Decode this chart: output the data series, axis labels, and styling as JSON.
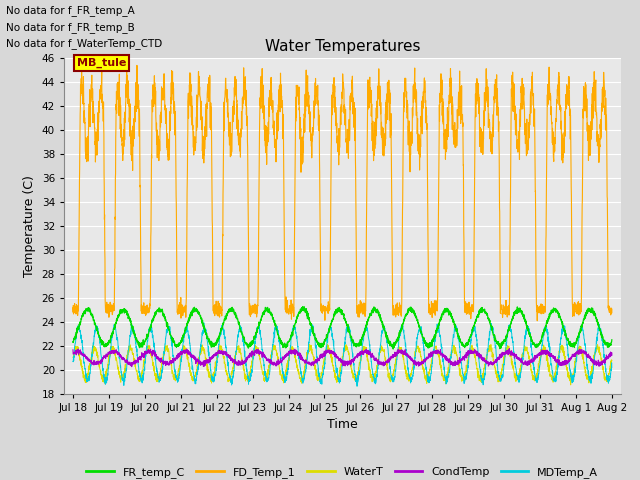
{
  "title": "Water Temperatures",
  "ylabel": "Temperature (C)",
  "xlabel": "Time",
  "ylim": [
    18,
    46
  ],
  "yticks": [
    18,
    20,
    22,
    24,
    26,
    28,
    30,
    32,
    34,
    36,
    38,
    40,
    42,
    44,
    46
  ],
  "x_start_day": 17.75,
  "x_end_day": 33.25,
  "xtick_labels": [
    "Jul 18",
    "Jul 19",
    "Jul 20",
    "Jul 21",
    "Jul 22",
    "Jul 23",
    "Jul 24",
    "Jul 25",
    "Jul 26",
    "Jul 27",
    "Jul 28",
    "Jul 29",
    "Jul 30",
    "Jul 31",
    "Aug 1",
    "Aug 2"
  ],
  "xtick_positions": [
    18,
    19,
    20,
    21,
    22,
    23,
    24,
    25,
    26,
    27,
    28,
    29,
    30,
    31,
    32,
    33
  ],
  "no_data_text": [
    "No data for f_FR_temp_A",
    "No data for f_FR_temp_B",
    "No data for f_WaterTemp_CTD"
  ],
  "mb_tule_label": "MB_tule",
  "legend_entries": [
    {
      "label": "FR_temp_C",
      "color": "#00dd00"
    },
    {
      "label": "FD_Temp_1",
      "color": "#ffaa00"
    },
    {
      "label": "WaterT",
      "color": "#dddd00"
    },
    {
      "label": "CondTemp",
      "color": "#aa00cc"
    },
    {
      "label": "MDTemp_A",
      "color": "#00ccdd"
    }
  ],
  "bg_color": "#d8d8d8",
  "plot_bg_color": "#e8e8e8",
  "grid_color": "#ffffff",
  "title_fontsize": 11,
  "label_fontsize": 9,
  "tick_fontsize": 7.5
}
